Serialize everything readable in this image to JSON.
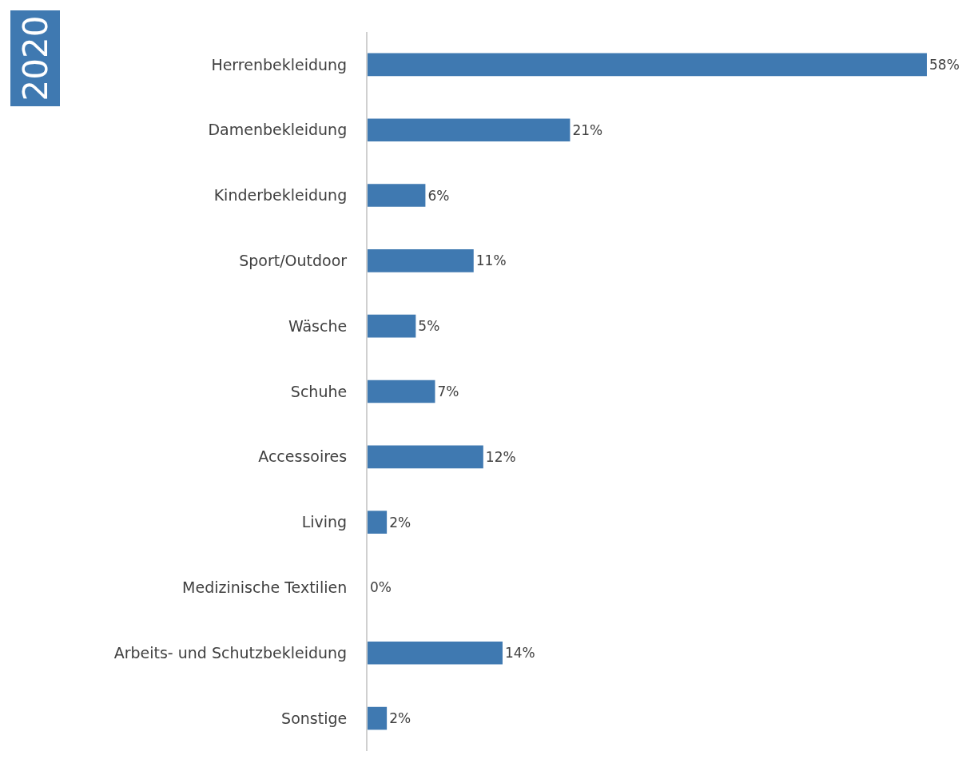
{
  "chart_data": {
    "type": "bar",
    "orientation": "horizontal",
    "title": "2020",
    "categories": [
      "Herrenbekleidung",
      "Damenbekleidung",
      "Kinderbekleidung",
      "Sport/Outdoor",
      "Wäsche",
      "Schuhe",
      "Accessoires",
      "Living",
      "Medizinische Textilien",
      "Arbeits- und Schutzbekleidung",
      "Sonstige"
    ],
    "values": [
      58,
      21,
      6,
      11,
      5,
      7,
      12,
      2,
      0,
      14,
      2
    ],
    "value_labels": [
      "58%",
      "21%",
      "6%",
      "11%",
      "5%",
      "7%",
      "12%",
      "2%",
      "0%",
      "14%",
      "2%"
    ],
    "color": "#3f79b1",
    "legend": false
  }
}
